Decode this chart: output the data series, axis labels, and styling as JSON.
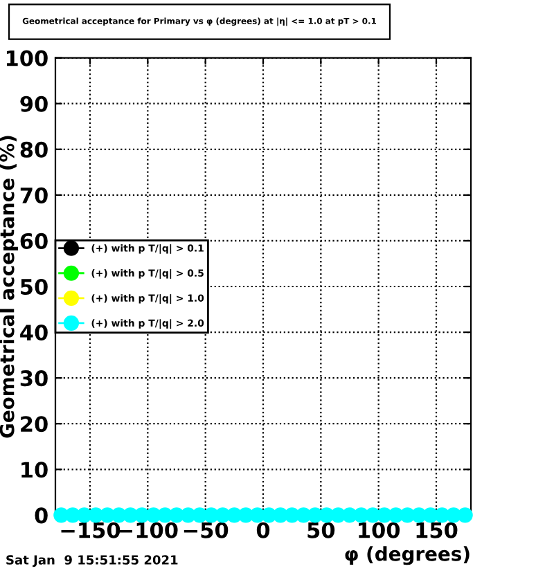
{
  "chart_data": {
    "type": "scatter",
    "title": "Geometrical acceptance for Primary vs φ (degrees) at |η| <= 1.0 at pT > 0.1",
    "xlabel": "φ (degrees)",
    "ylabel": "Geometrical acceptance (%)",
    "x": [
      -175,
      -165,
      -155,
      -145,
      -135,
      -125,
      -115,
      -105,
      -95,
      -85,
      -75,
      -65,
      -55,
      -45,
      -35,
      -25,
      -15,
      -5,
      5,
      15,
      25,
      35,
      45,
      55,
      65,
      75,
      85,
      95,
      105,
      115,
      125,
      135,
      145,
      155,
      165,
      175
    ],
    "series": [
      {
        "name": "(+) with p T/|q| > 0.1",
        "color": "#000000",
        "values": [
          null,
          null,
          null,
          null,
          null,
          null,
          null,
          null,
          null,
          null,
          null,
          null,
          null,
          null,
          null,
          null,
          null,
          null,
          null,
          null,
          null,
          null,
          null,
          null,
          null,
          null,
          null,
          null,
          null,
          null,
          null,
          null,
          null,
          null,
          null,
          null
        ]
      },
      {
        "name": "(+) with p T/|q| > 0.5",
        "color": "#00ff00",
        "values": [
          null,
          null,
          null,
          null,
          null,
          null,
          null,
          null,
          null,
          null,
          null,
          null,
          null,
          null,
          null,
          null,
          null,
          null,
          null,
          null,
          null,
          null,
          null,
          null,
          null,
          null,
          null,
          null,
          null,
          null,
          null,
          null,
          null,
          null,
          null,
          null
        ]
      },
      {
        "name": "(+) with p T/|q| > 1.0",
        "color": "#ffff00",
        "values": [
          null,
          null,
          null,
          null,
          null,
          null,
          null,
          null,
          null,
          null,
          null,
          null,
          null,
          null,
          null,
          null,
          null,
          null,
          null,
          null,
          null,
          null,
          null,
          null,
          null,
          null,
          null,
          null,
          null,
          null,
          null,
          null,
          null,
          null,
          null,
          null
        ]
      },
      {
        "name": "(+) with p T/|q| > 2.0",
        "color": "#00ffff",
        "values": [
          0,
          0,
          0,
          0,
          0,
          0,
          0,
          0,
          0,
          0,
          0,
          0,
          0,
          0,
          0,
          0,
          0,
          0,
          0,
          0,
          0,
          0,
          0,
          0,
          0,
          0,
          0,
          0,
          0,
          0,
          0,
          0,
          0,
          0,
          0,
          0
        ]
      }
    ],
    "xlim": [
      -180,
      180
    ],
    "xticks": [
      -150,
      -100,
      -50,
      0,
      50,
      100,
      150
    ],
    "ylim": [
      0,
      100
    ],
    "yticks": [
      0,
      10,
      20,
      30,
      40,
      50,
      60,
      70,
      80,
      90,
      100
    ],
    "grid": true,
    "legend": "left",
    "marker": "circle",
    "annotations": [
      "Sat Jan  9 15:51:55 2021"
    ]
  }
}
